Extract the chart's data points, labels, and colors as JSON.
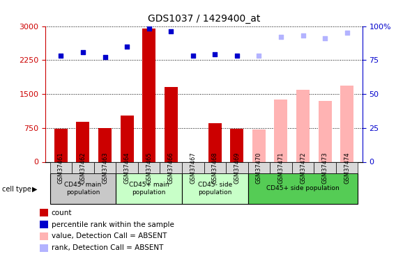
{
  "title": "GDS1037 / 1429400_at",
  "samples": [
    "GSM37461",
    "GSM37462",
    "GSM37463",
    "GSM37464",
    "GSM37465",
    "GSM37466",
    "GSM37467",
    "GSM37468",
    "GSM37469",
    "GSM37470",
    "GSM37471",
    "GSM37472",
    "GSM37473",
    "GSM37474"
  ],
  "bar_values": [
    730,
    880,
    750,
    1030,
    2950,
    1650,
    null,
    850,
    730,
    null,
    null,
    null,
    null,
    null
  ],
  "bar_absent_values": [
    null,
    null,
    null,
    null,
    null,
    null,
    null,
    null,
    null,
    720,
    1380,
    1600,
    1350,
    1680
  ],
  "rank_values": [
    78,
    81,
    77,
    85,
    98,
    96,
    78,
    79,
    78,
    null,
    null,
    null,
    null,
    null
  ],
  "rank_absent_values": [
    null,
    null,
    null,
    null,
    null,
    null,
    null,
    null,
    null,
    78,
    92,
    93,
    91,
    95
  ],
  "bar_color": "#CC0000",
  "bar_absent_color": "#FFB3B3",
  "rank_color": "#0000CC",
  "rank_absent_color": "#B3B3FF",
  "ylim_left": [
    0,
    3000
  ],
  "ylim_right": [
    0,
    100
  ],
  "yticks_left": [
    0,
    750,
    1500,
    2250,
    3000
  ],
  "yticks_right": [
    0,
    25,
    50,
    75,
    100
  ],
  "cell_types": [
    {
      "label": "CD45- main\npopulation",
      "start": 0,
      "end": 3,
      "color": "#C8C8C8"
    },
    {
      "label": "CD45+ main\npopulation",
      "start": 3,
      "end": 6,
      "color": "#C8FFC8"
    },
    {
      "label": "CD45- side\npopulation",
      "start": 6,
      "end": 9,
      "color": "#C8FFC8"
    },
    {
      "label": "CD45+ side population",
      "start": 9,
      "end": 14,
      "color": "#55CC55"
    }
  ],
  "cell_type_label": "cell type",
  "legend_items": [
    {
      "label": "count",
      "color": "#CC0000"
    },
    {
      "label": "percentile rank within the sample",
      "color": "#0000CC"
    },
    {
      "label": "value, Detection Call = ABSENT",
      "color": "#FFB3B3"
    },
    {
      "label": "rank, Detection Call = ABSENT",
      "color": "#B3B3FF"
    }
  ]
}
